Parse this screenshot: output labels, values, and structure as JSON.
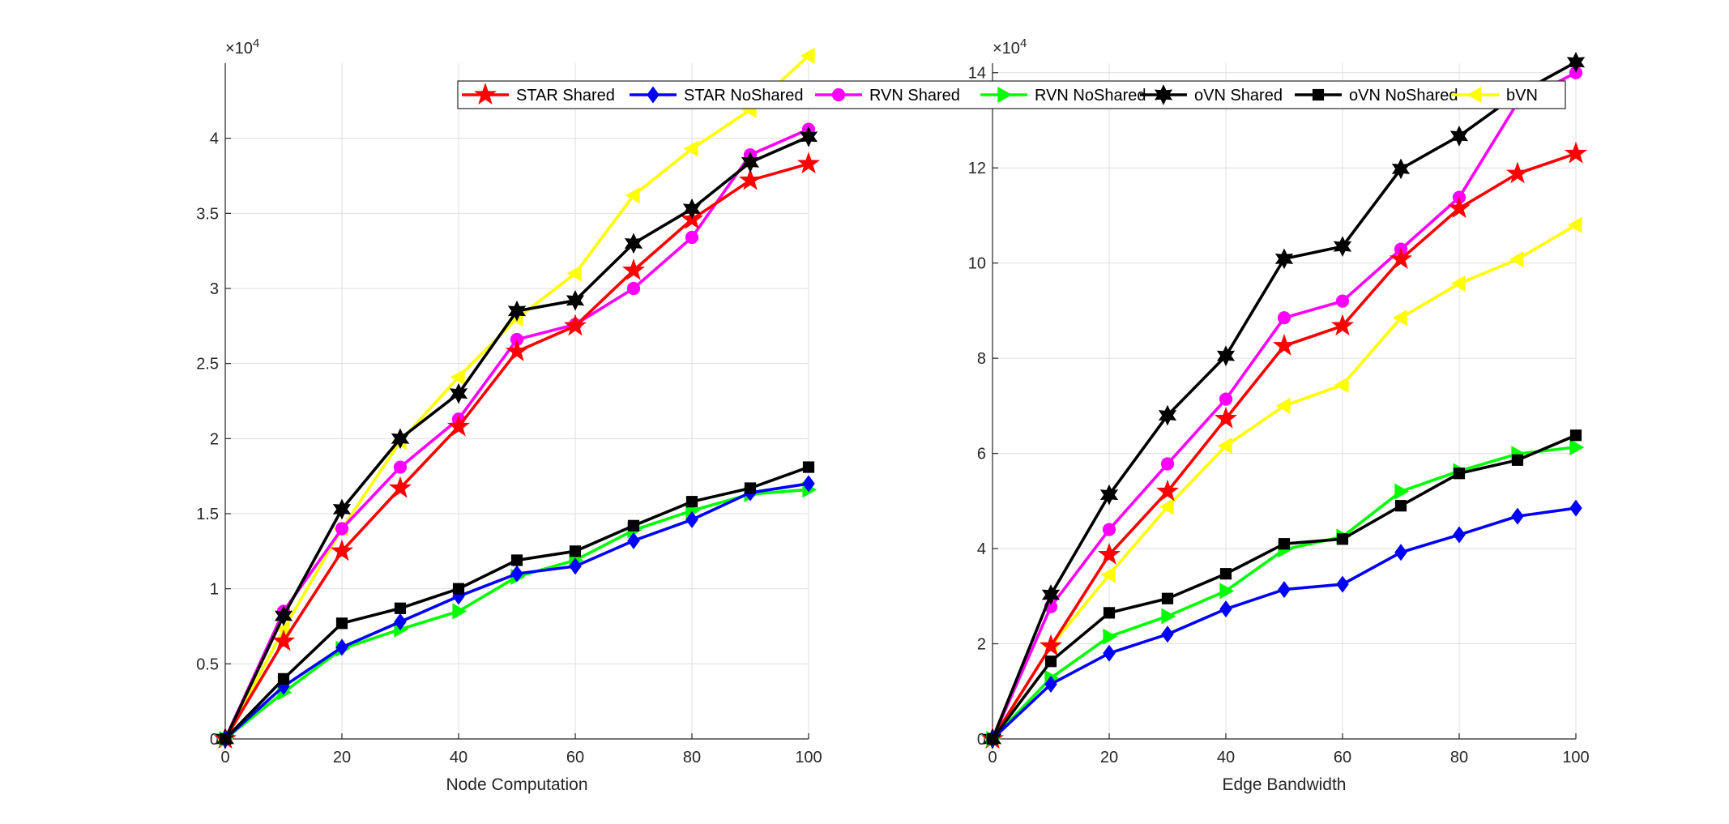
{
  "chart_data": [
    {
      "type": "line",
      "xlabel": "Node Computation",
      "ylabel": "",
      "exponent_label": "×10",
      "exponent_power": "4",
      "x": [
        0,
        10,
        20,
        30,
        40,
        50,
        60,
        70,
        80,
        90,
        100
      ],
      "xlim": [
        0,
        100
      ],
      "ylim": [
        0,
        45000
      ],
      "x_ticks": [
        0,
        20,
        40,
        60,
        80,
        100
      ],
      "x_tick_labels": [
        "0",
        "20",
        "40",
        "60",
        "80",
        "100"
      ],
      "y_ticks": [
        0,
        5000,
        10000,
        15000,
        20000,
        25000,
        30000,
        35000,
        40000
      ],
      "y_tick_labels": [
        "0",
        "0.5",
        "1",
        "1.5",
        "2",
        "2.5",
        "3",
        "3.5",
        "4"
      ],
      "grid": true,
      "series": [
        {
          "name": "STAR Shared",
          "values": [
            0,
            6500,
            12500,
            16700,
            20800,
            25800,
            27500,
            31200,
            34600,
            37200,
            38300
          ]
        },
        {
          "name": "STAR NoShared",
          "values": [
            0,
            3500,
            6100,
            7800,
            9500,
            11000,
            11500,
            13200,
            14600,
            16400,
            17000
          ]
        },
        {
          "name": "RVN Shared",
          "values": [
            0,
            8500,
            14000,
            18100,
            21300,
            26600,
            27600,
            30000,
            33400,
            38900,
            40600
          ]
        },
        {
          "name": "RVN NoShared",
          "values": [
            0,
            3100,
            6000,
            7300,
            8500,
            10800,
            11900,
            13900,
            15200,
            16300,
            16600
          ]
        },
        {
          "name": "oVN Shared",
          "values": [
            0,
            8200,
            15300,
            20000,
            23000,
            28500,
            29200,
            33000,
            35300,
            38400,
            40100
          ]
        },
        {
          "name": "oVN NoShared",
          "values": [
            0,
            4000,
            7700,
            8700,
            10000,
            11900,
            12500,
            14200,
            15800,
            16700,
            18100
          ]
        },
        {
          "name": "bVN",
          "values": [
            0,
            7300,
            14000,
            19800,
            24100,
            28000,
            31000,
            36200,
            39300,
            41900,
            45500
          ]
        }
      ]
    },
    {
      "type": "line",
      "xlabel": "Edge Bandwidth",
      "ylabel": "",
      "exponent_label": "×10",
      "exponent_power": "4",
      "x": [
        0,
        10,
        20,
        30,
        40,
        50,
        60,
        70,
        80,
        90,
        100
      ],
      "xlim": [
        0,
        100
      ],
      "ylim": [
        0,
        142000
      ],
      "x_ticks": [
        0,
        20,
        40,
        60,
        80,
        100
      ],
      "x_tick_labels": [
        "0",
        "20",
        "40",
        "60",
        "80",
        "100"
      ],
      "y_ticks": [
        0,
        20000,
        40000,
        60000,
        80000,
        100000,
        120000,
        140000
      ],
      "y_tick_labels": [
        "0",
        "2",
        "4",
        "6",
        "8",
        "10",
        "12",
        "14"
      ],
      "grid": true,
      "series": [
        {
          "name": "STAR Shared",
          "values": [
            0,
            19500,
            38700,
            52000,
            67300,
            82600,
            86800,
            100800,
            111500,
            118800,
            123000
          ]
        },
        {
          "name": "STAR NoShared",
          "values": [
            0,
            11500,
            18000,
            22000,
            27300,
            31400,
            32500,
            39200,
            42900,
            46800,
            48500
          ]
        },
        {
          "name": "RVN Shared",
          "values": [
            0,
            27800,
            44000,
            57800,
            71400,
            88500,
            92000,
            102900,
            113800,
            133700,
            140000
          ]
        },
        {
          "name": "RVN NoShared",
          "values": [
            0,
            12800,
            21500,
            25800,
            31100,
            39800,
            42500,
            52000,
            56300,
            59900,
            61300
          ]
        },
        {
          "name": "oVN Shared",
          "values": [
            0,
            30300,
            51300,
            68000,
            80500,
            100900,
            103500,
            119800,
            126700,
            135500,
            142200
          ]
        },
        {
          "name": "oVN NoShared",
          "values": [
            0,
            16300,
            26500,
            29500,
            34700,
            41000,
            42000,
            49000,
            55800,
            58600,
            63800
          ]
        },
        {
          "name": "bVN",
          "values": [
            0,
            19500,
            34500,
            48800,
            61600,
            70000,
            74400,
            88500,
            95700,
            100800,
            108000
          ]
        }
      ]
    }
  ],
  "legend": {
    "placement": "top",
    "entries": [
      {
        "name": "STAR Shared",
        "color": "#ff0000",
        "marker": "star5"
      },
      {
        "name": "STAR NoShared",
        "color": "#0000ff",
        "marker": "diamond"
      },
      {
        "name": "RVN Shared",
        "color": "#ff00ff",
        "marker": "circle"
      },
      {
        "name": "RVN NoShared",
        "color": "#00ff00",
        "marker": "triangle-right"
      },
      {
        "name": "oVN Shared",
        "color": "#000000",
        "marker": "star6"
      },
      {
        "name": "oVN NoShared",
        "color": "#000000",
        "marker": "square"
      },
      {
        "name": "bVN",
        "color": "#ffff00",
        "marker": "triangle-left"
      }
    ]
  }
}
